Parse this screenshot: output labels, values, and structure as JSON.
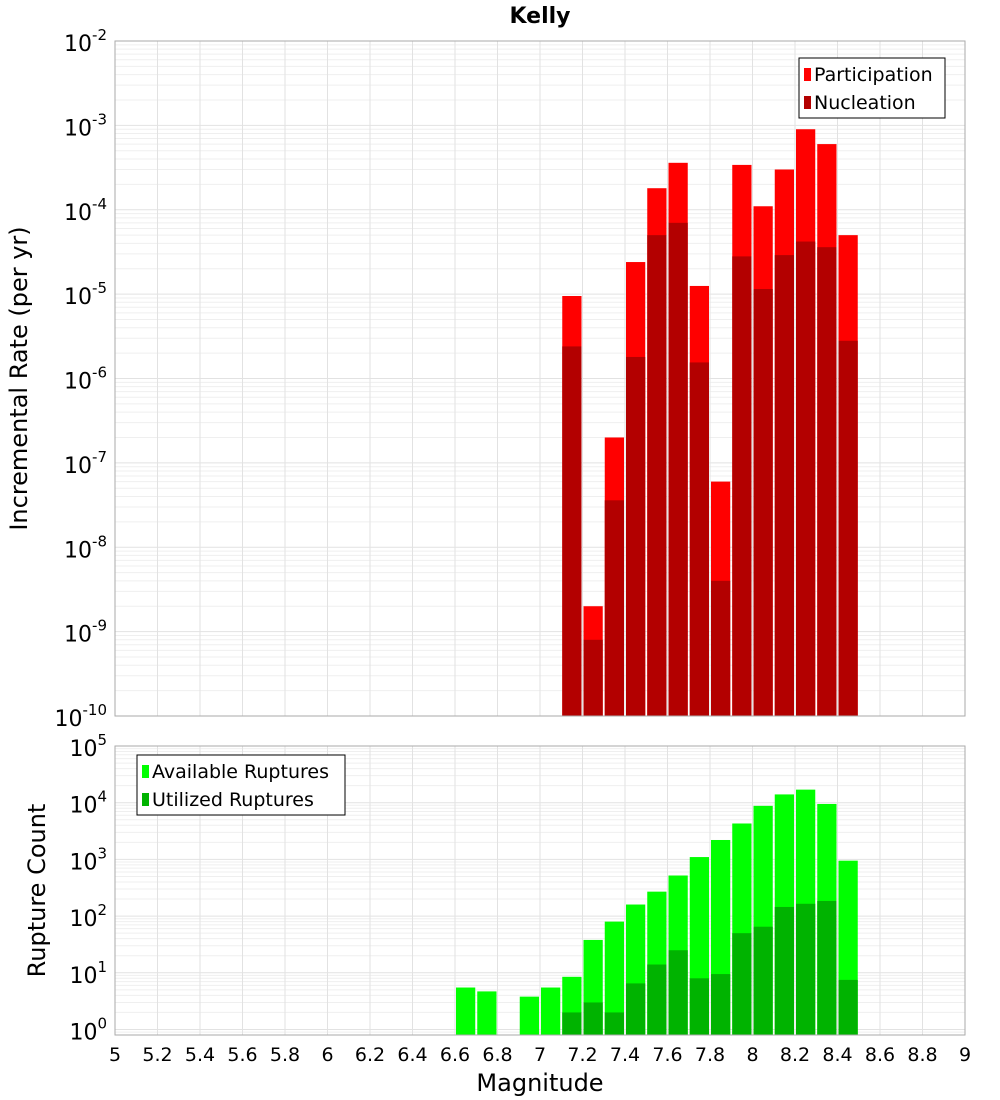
{
  "chart_data": [
    {
      "type": "bar",
      "title": "Kelly",
      "xlabel": "",
      "ylabel": "Incremental Rate (per yr)",
      "yscale": "log",
      "ylim": [
        1e-10,
        0.01
      ],
      "xlim": [
        5,
        9
      ],
      "grid": true,
      "legend_position": "top-right",
      "bar_width": 0.1,
      "y_tick_exponents": [
        -10,
        -9,
        -8,
        -7,
        -6,
        -5,
        -4,
        -3,
        -2
      ],
      "series": [
        {
          "name": "Participation",
          "color": "#ff0000",
          "x": [
            7.15,
            7.25,
            7.35,
            7.45,
            7.55,
            7.65,
            7.75,
            7.85,
            7.95,
            8.05,
            8.15,
            8.25,
            8.35,
            8.45
          ],
          "values": [
            9.5e-06,
            2e-09,
            2e-07,
            2.4e-05,
            0.00018,
            0.00036,
            1.25e-05,
            6e-08,
            0.00034,
            0.00011,
            0.0003,
            0.0009,
            0.0006,
            5e-05
          ]
        },
        {
          "name": "Nucleation",
          "color": "#b30000",
          "x": [
            7.15,
            7.25,
            7.35,
            7.45,
            7.55,
            7.65,
            7.75,
            7.85,
            7.95,
            8.05,
            8.15,
            8.25,
            8.35,
            8.45
          ],
          "values": [
            2.4e-06,
            8e-10,
            3.6e-08,
            1.8e-06,
            5e-05,
            7e-05,
            1.55e-06,
            4e-09,
            2.8e-05,
            1.15e-05,
            2.9e-05,
            4.2e-05,
            3.6e-05,
            2.8e-06
          ]
        }
      ]
    },
    {
      "type": "bar",
      "title": "",
      "xlabel": "Magnitude",
      "ylabel": "Rupture Count",
      "yscale": "log",
      "ylim": [
        0.8,
        100000
      ],
      "xlim": [
        5,
        9
      ],
      "grid": true,
      "legend_position": "top-left",
      "bar_width": 0.1,
      "x_ticks": [
        "5",
        "5.2",
        "5.4",
        "5.6",
        "5.8",
        "6",
        "6.2",
        "6.4",
        "6.6",
        "6.8",
        "7",
        "7.2",
        "7.4",
        "7.6",
        "7.8",
        "8",
        "8.2",
        "8.4",
        "8.6",
        "8.8",
        "9"
      ],
      "y_tick_exponents": [
        0,
        1,
        2,
        3,
        4,
        5
      ],
      "series": [
        {
          "name": "Available Ruptures",
          "color": "#00ff00",
          "x": [
            6.65,
            6.75,
            6.95,
            7.05,
            7.15,
            7.25,
            7.35,
            7.45,
            7.55,
            7.65,
            7.75,
            7.85,
            7.95,
            8.05,
            8.15,
            8.25,
            8.35,
            8.45
          ],
          "values": [
            5.5,
            4.7,
            3.8,
            5.5,
            8.5,
            38,
            80,
            160,
            270,
            520,
            1100,
            2200,
            4300,
            8800,
            14000,
            17000,
            9500,
            950
          ]
        },
        {
          "name": "Utilized Ruptures",
          "color": "#00b300",
          "x": [
            7.15,
            7.25,
            7.35,
            7.45,
            7.55,
            7.65,
            7.75,
            7.85,
            7.95,
            8.05,
            8.15,
            8.25,
            8.35,
            8.45
          ],
          "values": [
            2,
            3,
            2,
            6.5,
            14,
            25,
            8,
            9.5,
            50,
            65,
            145,
            165,
            185,
            7.5
          ]
        }
      ]
    }
  ]
}
